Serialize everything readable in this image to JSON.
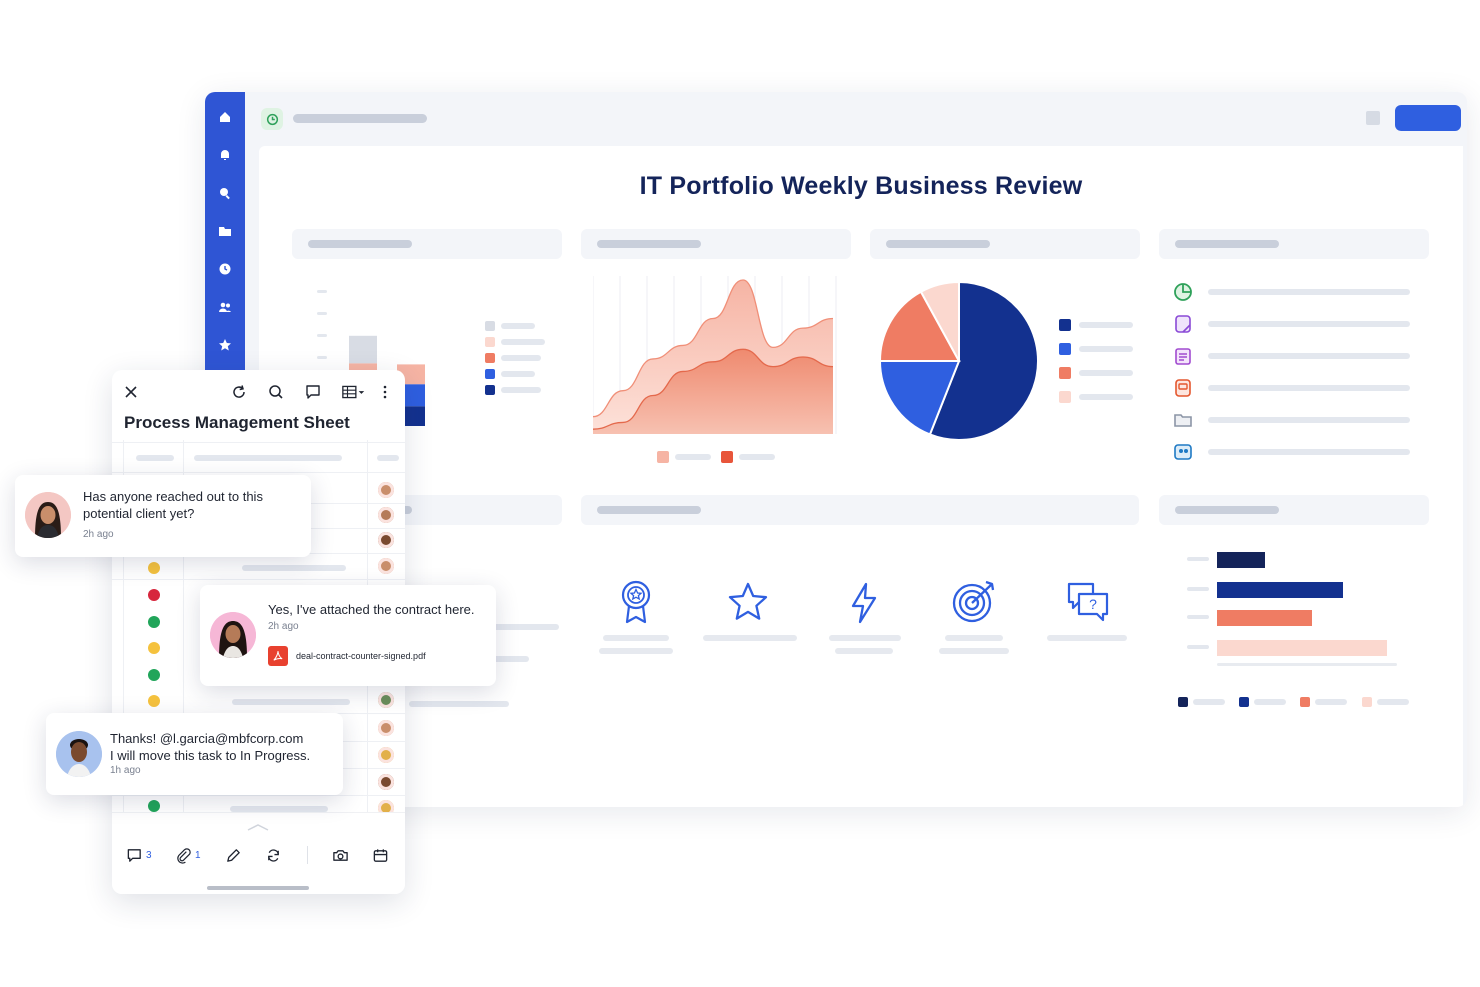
{
  "dashboard": {
    "title": "IT Portfolio Weekly Business Review",
    "sidebar_icons": [
      "home-icon",
      "bell-icon",
      "search-icon",
      "folder-icon",
      "clock-icon",
      "people-icon",
      "star-icon"
    ],
    "topbar_icon": "clock-icon",
    "legend_colors": {
      "navy": "#13318f",
      "blue": "#2f5fe0",
      "coral": "#ef7c63",
      "peach": "#f6b4a4",
      "pale": "#fbd8cf",
      "gray": "#d8dce4"
    },
    "kpi_icons": [
      "award-icon",
      "star-icon",
      "lightning-icon",
      "target-icon",
      "help-chat-icon"
    ],
    "list_icons": [
      "pie-chart-icon",
      "note-icon",
      "clipboard-icon",
      "form-icon",
      "folder-icon",
      "contacts-icon"
    ]
  },
  "chart_data": [
    {
      "type": "bar",
      "stacked": true,
      "categories": [
        "",
        "",
        "",
        ""
      ],
      "series": [
        {
          "values": [
            15,
            18,
            0,
            0
          ]
        },
        {
          "values": [
            30,
            20,
            0,
            0
          ]
        },
        {
          "values": [
            12,
            18,
            0,
            0
          ]
        },
        {
          "values": [
            25,
            0,
            0,
            0
          ]
        }
      ]
    },
    {
      "type": "area",
      "x": [
        0,
        1,
        2,
        3,
        4,
        5,
        6,
        7,
        8
      ],
      "series": [
        {
          "values": [
            18,
            45,
            78,
            92,
            120,
            160,
            90,
            110,
            120
          ]
        },
        {
          "values": [
            5,
            12,
            40,
            65,
            75,
            88,
            70,
            80,
            70
          ]
        }
      ]
    },
    {
      "type": "pie",
      "values": [
        56,
        19,
        17,
        8
      ]
    },
    {
      "type": "bar",
      "orientation": "horizontal",
      "values": [
        48,
        126,
        95,
        170
      ]
    }
  ],
  "sheet": {
    "title": "Process Management Sheet",
    "toolbar_icons": [
      "close-icon",
      "refresh-icon",
      "search-icon",
      "comment-icon",
      "grid-view-icon",
      "more-icon"
    ],
    "status_dots": [
      "#f5c23e",
      "#d7263d",
      "#21a55a",
      "#f5c23e",
      "#21a55a",
      "#f5c23e",
      "#21a55a"
    ],
    "bottom_bar": {
      "comments_count": "3",
      "attachments_count": "1"
    }
  },
  "comments": [
    {
      "text_line1": "Has anyone reached out to this",
      "text_line2": "potential client yet?",
      "time": "2h ago"
    },
    {
      "text_line1": "Yes, I've attached the contract here.",
      "time": "2h ago",
      "attachment": "deal-contract-counter-signed.pdf"
    },
    {
      "text_line1": "Thanks! @l.garcia@mbfcorp.com",
      "text_line2": "I will move this task to In Progress.",
      "time": "1h ago"
    }
  ]
}
